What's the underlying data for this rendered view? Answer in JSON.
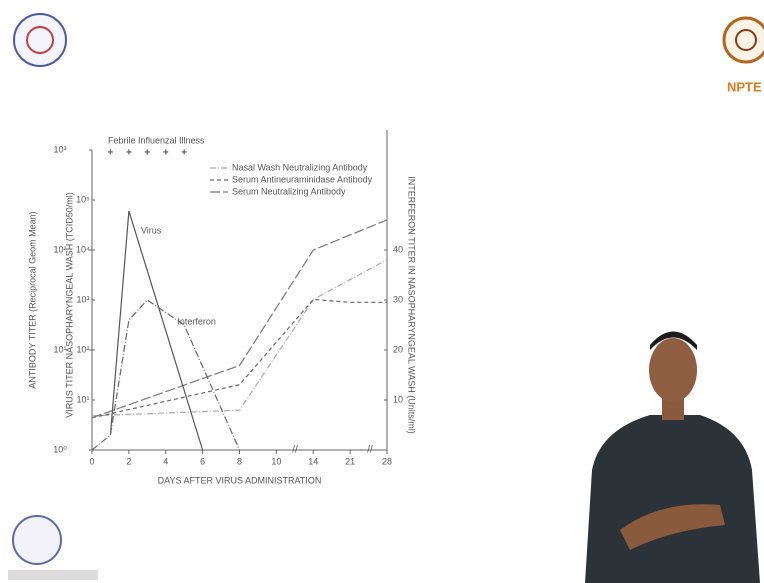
{
  "logo_text": "NPTE",
  "chart_data": {
    "type": "line",
    "xlabel": "DAYS AFTER VIRUS ADMINISTRATION",
    "ylabel": "ANTIBODY TITER (Reciprocal Geom Mean)",
    "y3label": "VIRUS TITER NASOPHARYNGEAL WASH (TCID50/ml)",
    "y2label": "INTERFERON TITER IN NASOPHARYNGEAL WASH (Units/ml)",
    "illness": {
      "label": "Febrile Influenzal Illness",
      "days": [
        1,
        2,
        3,
        4,
        5
      ],
      "marker": "+"
    },
    "xlim": [
      0,
      28
    ],
    "xticks": [
      0,
      2,
      4,
      6,
      8,
      10,
      14,
      21,
      28
    ],
    "ylim": [
      1,
      1000
    ],
    "ylog": true,
    "yticks": [
      {
        "value": 1,
        "label": "10⁰"
      },
      {
        "value": 10,
        "label": "10¹"
      },
      {
        "value": 100,
        "label": "10²"
      },
      {
        "value": 1000,
        "label": "10³"
      }
    ],
    "y3lim": [
      1,
      1000000
    ],
    "y3log": true,
    "y3ticks": [
      {
        "value": 10,
        "label": "10¹"
      },
      {
        "value": 100,
        "label": "10²"
      },
      {
        "value": 1000,
        "label": "10³"
      },
      {
        "value": 10000,
        "label": "10⁴"
      },
      {
        "value": 100000,
        "label": "10⁵"
      }
    ],
    "y2lim": [
      0,
      60
    ],
    "y2ticks": [
      10,
      20,
      30,
      40
    ],
    "series": [
      {
        "name": "Nasal Wash Neutralizing Antibody",
        "legend": true,
        "axis": "y",
        "color": "#aaa",
        "dash": "6 2 1 2",
        "x": [
          0,
          8,
          14,
          28
        ],
        "values": [
          2.2,
          2.5,
          32,
          80
        ]
      },
      {
        "name": "Serum Antineuraminidase Antibody",
        "legend": true,
        "axis": "y",
        "color": "#666",
        "dash": "4 3",
        "x": [
          0,
          8,
          14,
          21,
          28
        ],
        "values": [
          2.1,
          4.5,
          32,
          30,
          30
        ]
      },
      {
        "name": "Serum Neutralizing Antibody",
        "legend": true,
        "axis": "y",
        "color": "#777",
        "dash": "10 3",
        "x": [
          0,
          8,
          14,
          28
        ],
        "values": [
          2.1,
          7,
          100,
          200
        ]
      },
      {
        "name": "Virus",
        "legend": false,
        "axis": "y3",
        "color": "#555",
        "dash": "",
        "x": [
          1,
          2,
          6
        ],
        "values": [
          2,
          60000,
          1
        ]
      },
      {
        "name": "Interferon",
        "legend": false,
        "axis": "y2",
        "color": "#666",
        "dash": "7 2 1 2",
        "x": [
          0,
          1,
          2,
          3,
          5,
          8
        ],
        "values": [
          0,
          3,
          26,
          30,
          25,
          0
        ]
      }
    ]
  }
}
